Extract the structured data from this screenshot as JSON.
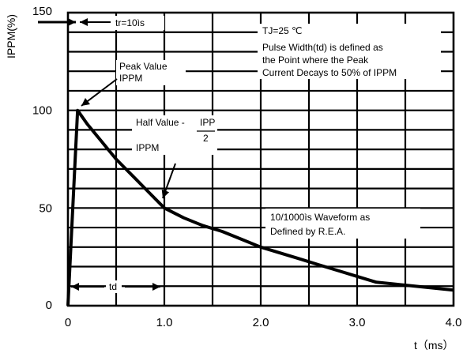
{
  "chart_data": {
    "type": "line",
    "title": "",
    "xlabel": "t（ms）",
    "ylabel": "IPPM(%)",
    "xlim": [
      0,
      4.0
    ],
    "ylim": [
      0,
      150
    ],
    "x_ticks": [
      "0",
      "1.0",
      "2.0",
      "3.0",
      "4.0"
    ],
    "y_ticks": [
      "0",
      "50",
      "100",
      "150"
    ],
    "grid": true,
    "series": [
      {
        "x": [
          0,
          0.1,
          0.2,
          0.3,
          0.4,
          0.5,
          0.6,
          0.7,
          0.8,
          0.9,
          1.0,
          1.2,
          1.4,
          1.6,
          1.8,
          2.0,
          2.2,
          2.4,
          2.6,
          2.8,
          3.0,
          3.2,
          3.4,
          3.6,
          3.8,
          4.0
        ],
        "y": [
          0,
          100,
          93,
          87,
          81,
          75,
          70,
          65,
          60,
          55,
          50,
          45,
          41,
          38,
          34,
          30,
          27,
          24,
          21,
          18,
          15,
          12,
          11,
          10,
          9,
          8
        ]
      }
    ],
    "annotations": {
      "tr": "tr=10ìs",
      "tj": "TJ=25 ℃",
      "pulse_width_1": "Pulse Width(td) is defined as",
      "pulse_width_2": "the Point where the Peak",
      "pulse_width_3": "Current Decays to 50% of IPPM",
      "peak_value_1": "Peak Value",
      "peak_value_2": "IPPM",
      "half_value_prefix": "Half Value -",
      "half_value_num": "IPP",
      "half_value_den": "2",
      "half_value_ippm": "IPPM",
      "waveform_1": "10/1000ìs Waveform as",
      "waveform_2": "Defined by R.E.A.",
      "td": "td"
    },
    "colors": {
      "curve": "#000000",
      "grid": "#000000",
      "background": "#ffffff"
    }
  }
}
